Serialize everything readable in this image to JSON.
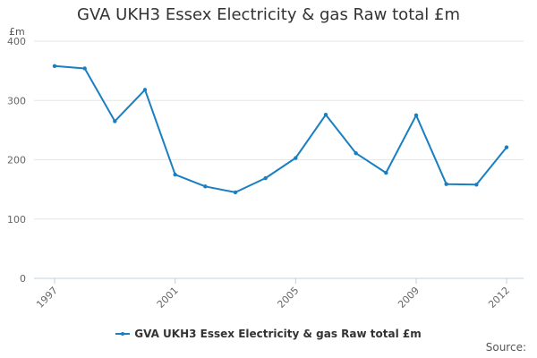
{
  "chart_data": {
    "type": "line",
    "title": "GVA UKH3 Essex Electricity & gas Raw total £m",
    "y_unit": "£m",
    "xlabel": "",
    "ylabel": "",
    "x": [
      1997,
      1998,
      1999,
      2000,
      2001,
      2002,
      2003,
      2004,
      2005,
      2006,
      2007,
      2008,
      2009,
      2010,
      2011,
      2012
    ],
    "x_tick_labels": [
      "1997",
      "2001",
      "2005",
      "2009",
      "2012"
    ],
    "ylim": [
      0,
      400
    ],
    "y_ticks": [
      0,
      100,
      200,
      300,
      400
    ],
    "grid": true,
    "legend_position": "bottom",
    "series": [
      {
        "name": "GVA UKH3 Essex Electricity & gas Raw total £m",
        "color": "#1a7fc1",
        "values": [
          358,
          354,
          265,
          318,
          175,
          155,
          145,
          169,
          203,
          276,
          211,
          178,
          275,
          159,
          158,
          221
        ]
      }
    ]
  },
  "credits": "Source:"
}
